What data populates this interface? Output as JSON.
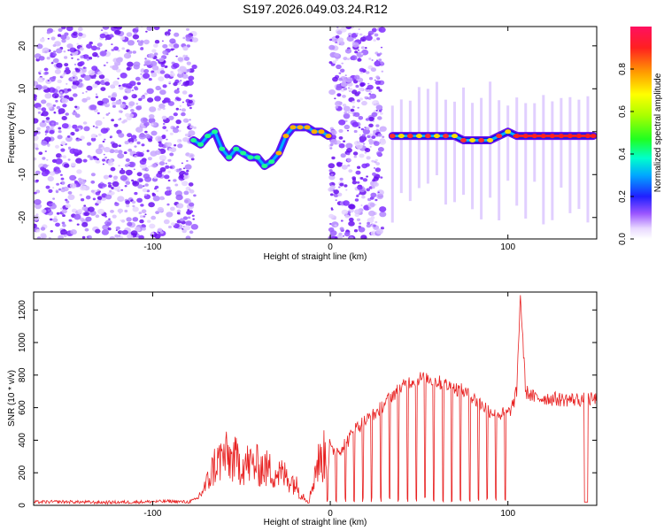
{
  "title": "S197.2026.049.03.24.R12",
  "chart_data": [
    {
      "type": "heatmap",
      "xlabel": "Height of straight line (km)",
      "ylabel": "Frequency (Hz)",
      "xlim": [
        -167,
        150
      ],
      "ylim": [
        -25,
        24.5
      ],
      "xticks": [
        -100,
        0,
        100
      ],
      "yticks": [
        -20,
        -10,
        0,
        10,
        20
      ],
      "colorbar": {
        "label": "Normalized spectral amplitude",
        "range": [
          0,
          1
        ],
        "ticks": [
          0.0,
          0.2,
          0.4,
          0.6,
          0.8
        ]
      },
      "ridge": {
        "x": [
          -77,
          -73,
          -69,
          -65,
          -61,
          -57,
          -53,
          -49,
          -45,
          -41,
          -37,
          -33,
          -29,
          -25,
          -21,
          -17,
          -13,
          -9,
          -5,
          -1,
          35,
          40,
          45,
          50,
          55,
          60,
          65,
          70,
          75,
          80,
          85,
          90,
          95,
          100,
          105,
          110,
          115,
          120,
          125,
          130,
          135,
          140,
          145,
          148
        ],
        "y": [
          -2,
          -3,
          -1,
          0,
          -4,
          -6,
          -4,
          -5,
          -6,
          -6,
          -8,
          -7,
          -5,
          -1,
          1,
          1,
          1,
          0,
          0,
          -1,
          -1,
          -1,
          -1,
          -1,
          -1,
          -1,
          -1,
          -1,
          -2,
          -2,
          -2,
          -2,
          -1,
          0,
          -1,
          -1,
          -1,
          -1,
          -1,
          -1,
          -1,
          -1,
          -1,
          -1
        ]
      },
      "noise_regions": [
        [
          -167,
          -76
        ],
        [
          0,
          30
        ]
      ]
    },
    {
      "type": "line",
      "xlabel": "Height of straight line (km)",
      "ylabel": "SNR (10 * v/v)",
      "xlim": [
        -167,
        150
      ],
      "ylim": [
        0,
        1310
      ],
      "xticks": [
        -100,
        0,
        100
      ],
      "yticks": [
        0,
        200,
        400,
        600,
        800,
        1000,
        1200
      ],
      "series": [
        {
          "color": "#e82020",
          "x": [
            -167,
            -150,
            -130,
            -110,
            -90,
            -80,
            -75,
            -70,
            -65,
            -60,
            -55,
            -50,
            -45,
            -40,
            -35,
            -30,
            -25,
            -20,
            -17,
            -12,
            -8,
            -5,
            -2,
            0,
            5,
            10,
            15,
            20,
            25,
            30,
            35,
            40,
            45,
            50,
            55,
            60,
            65,
            70,
            75,
            80,
            85,
            90,
            95,
            100,
            103,
            105,
            107,
            110,
            115,
            120,
            130,
            140,
            150
          ],
          "y": [
            20,
            22,
            18,
            20,
            25,
            20,
            40,
            120,
            250,
            300,
            280,
            260,
            250,
            240,
            220,
            200,
            180,
            140,
            80,
            20,
            240,
            280,
            320,
            330,
            340,
            400,
            480,
            520,
            560,
            620,
            680,
            720,
            760,
            780,
            780,
            760,
            740,
            720,
            700,
            660,
            620,
            580,
            560,
            560,
            620,
            700,
            1300,
            700,
            660,
            660,
            650,
            650,
            650
          ]
        }
      ]
    }
  ]
}
